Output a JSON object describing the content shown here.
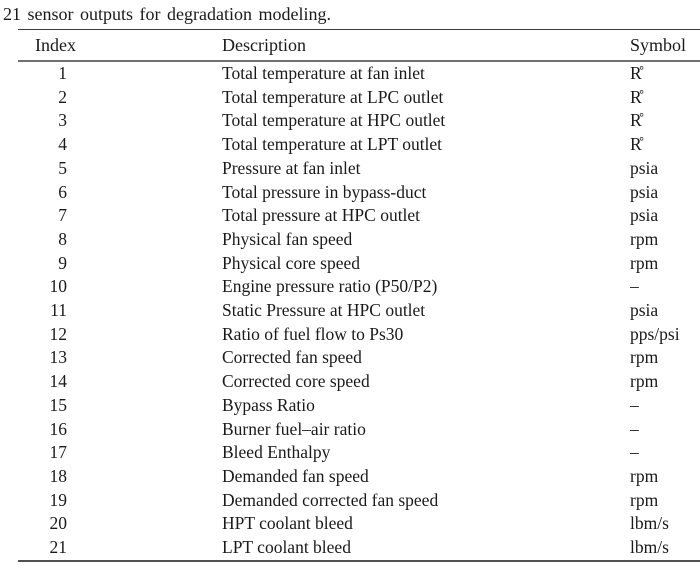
{
  "caption": "21 sensor outputs for degradation modeling.",
  "colors": {
    "text": "#1a1a1a",
    "rule_top": "#3d3d3d",
    "rule_below_header": "#6f6f6f",
    "rule_bottom": "#525252",
    "background": "#ffffff"
  },
  "table": {
    "columns": [
      "Index",
      "Description",
      "Symbol"
    ],
    "rows": [
      {
        "index": "1",
        "description": "Total temperature at fan inlet",
        "symbol": "R̊"
      },
      {
        "index": "2",
        "description": "Total temperature at LPC outlet",
        "symbol": "R̊"
      },
      {
        "index": "3",
        "description": "Total temperature at HPC outlet",
        "symbol": "R̊"
      },
      {
        "index": "4",
        "description": "Total temperature at LPT outlet",
        "symbol": "R̊"
      },
      {
        "index": "5",
        "description": "Pressure at fan inlet",
        "symbol": "psia"
      },
      {
        "index": "6",
        "description": "Total pressure in bypass-duct",
        "symbol": "psia"
      },
      {
        "index": "7",
        "description": "Total pressure at HPC outlet",
        "symbol": "psia"
      },
      {
        "index": "8",
        "description": "Physical fan speed",
        "symbol": "rpm"
      },
      {
        "index": "9",
        "description": "Physical core speed",
        "symbol": "rpm"
      },
      {
        "index": "10",
        "description": "Engine pressure ratio (P50/P2)",
        "symbol": "–"
      },
      {
        "index": "11",
        "description": "Static Pressure at HPC outlet",
        "symbol": "psia"
      },
      {
        "index": "12",
        "description": "Ratio of fuel flow to Ps30",
        "symbol": "pps/psi"
      },
      {
        "index": "13",
        "description": "Corrected fan speed",
        "symbol": "rpm"
      },
      {
        "index": "14",
        "description": "Corrected core speed",
        "symbol": "rpm"
      },
      {
        "index": "15",
        "description": "Bypass Ratio",
        "symbol": "–"
      },
      {
        "index": "16",
        "description": "Burner fuel–air ratio",
        "symbol": "–"
      },
      {
        "index": "17",
        "description": "Bleed Enthalpy",
        "symbol": "–"
      },
      {
        "index": "18",
        "description": "Demanded fan speed",
        "symbol": "rpm"
      },
      {
        "index": "19",
        "description": "Demanded corrected fan speed",
        "symbol": "rpm"
      },
      {
        "index": "20",
        "description": "HPT coolant bleed",
        "symbol": "lbm/s"
      },
      {
        "index": "21",
        "description": "LPT coolant bleed",
        "symbol": "lbm/s"
      }
    ]
  }
}
